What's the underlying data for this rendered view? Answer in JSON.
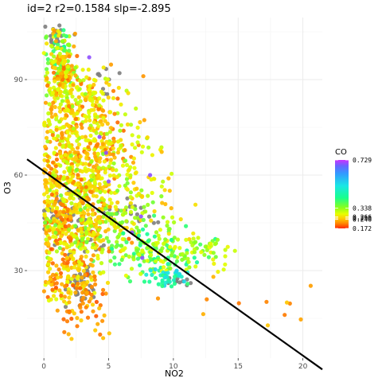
{
  "chart_data": {
    "type": "scatter",
    "title": "id=2 r2=0.1584 slp=-2.895",
    "xlabel": "NO2",
    "ylabel": "O3",
    "xlim": [
      -1.3,
      21.5
    ],
    "ylim": [
      2.5,
      109.5
    ],
    "x_ticks": [
      0,
      5,
      10,
      15,
      20
    ],
    "y_ticks": [
      30,
      60,
      90
    ],
    "x_minor": [
      2.5,
      7.5,
      12.5,
      17.5
    ],
    "y_minor": [
      15,
      45,
      75,
      105
    ],
    "grid": true,
    "legend_position": "right",
    "color_legend": {
      "title": "CO",
      "min": 0.172,
      "max": 0.729,
      "labels": [
        {
          "text": "0.729",
          "value": 0.729
        },
        {
          "text": "0.338",
          "value": 0.338
        },
        {
          "text": "0.266",
          "value": 0.266
        },
        {
          "text": "0.256",
          "value": 0.256
        },
        {
          "text": "0.246",
          "value": 0.246
        },
        {
          "text": "0.172",
          "value": 0.172
        }
      ],
      "gradient_stops": [
        {
          "value": 0.172,
          "color": "#ff2a00"
        },
        {
          "value": 0.215,
          "color": "#ff8c00"
        },
        {
          "value": 0.255,
          "color": "#ffd000"
        },
        {
          "value": 0.29,
          "color": "#e6ff00"
        },
        {
          "value": 0.34,
          "color": "#8cff1a"
        },
        {
          "value": 0.42,
          "color": "#1aff8c"
        },
        {
          "value": 0.52,
          "color": "#1ae6e6"
        },
        {
          "value": 0.62,
          "color": "#3399ff"
        },
        {
          "value": 0.68,
          "color": "#6666ff"
        },
        {
          "value": 0.729,
          "color": "#cc33ff"
        }
      ],
      "na_color": "#808080"
    },
    "regression_line": {
      "slope": -2.895,
      "intercept": 61.2,
      "x_start": -1.3,
      "x_end": 21.5,
      "color": "#000000"
    },
    "clusters": [
      {
        "cx": 1.2,
        "cy": 97,
        "sx": 0.6,
        "sy": 6,
        "n": 120,
        "co": [
          0.22,
          0.42
        ]
      },
      {
        "cx": 1.8,
        "cy": 90,
        "sx": 1.0,
        "sy": 5,
        "n": 110,
        "co": [
          0.2,
          0.34
        ]
      },
      {
        "cx": 2.8,
        "cy": 80,
        "sx": 1.8,
        "sy": 6,
        "n": 160,
        "co": [
          0.2,
          0.32
        ]
      },
      {
        "cx": 3.8,
        "cy": 70,
        "sx": 2.2,
        "sy": 4,
        "n": 170,
        "co": [
          0.2,
          0.33
        ]
      },
      {
        "cx": 2.0,
        "cy": 60,
        "sx": 2.0,
        "sy": 5,
        "n": 200,
        "co": [
          0.2,
          0.3
        ]
      },
      {
        "cx": 4.5,
        "cy": 56,
        "sx": 2.5,
        "sy": 5,
        "n": 150,
        "co": [
          0.24,
          0.36
        ]
      },
      {
        "cx": 2.2,
        "cy": 45,
        "sx": 1.8,
        "sy": 6,
        "n": 260,
        "co": [
          0.19,
          0.3
        ]
      },
      {
        "cx": 5.5,
        "cy": 43,
        "sx": 2.5,
        "sy": 4,
        "n": 150,
        "co": [
          0.25,
          0.38
        ]
      },
      {
        "cx": 8.5,
        "cy": 36,
        "sx": 2.0,
        "sy": 4,
        "n": 130,
        "co": [
          0.28,
          0.44
        ]
      },
      {
        "cx": 11.5,
        "cy": 36,
        "sx": 2.0,
        "sy": 3,
        "n": 60,
        "co": [
          0.28,
          0.36
        ]
      },
      {
        "cx": 2.2,
        "cy": 28,
        "sx": 1.4,
        "sy": 5,
        "n": 140,
        "co": [
          0.19,
          0.3
        ]
      },
      {
        "cx": 3.0,
        "cy": 18,
        "sx": 1.0,
        "sy": 5,
        "n": 50,
        "co": [
          0.19,
          0.26
        ]
      },
      {
        "cx": 4.0,
        "cy": 86,
        "sx": 0.6,
        "sy": 3,
        "n": 20,
        "co": [
          0.24,
          0.3
        ]
      },
      {
        "cx": 9.5,
        "cy": 28,
        "sx": 0.8,
        "sy": 1.5,
        "n": 40,
        "co": [
          0.4,
          0.55
        ]
      },
      {
        "cx": 16.0,
        "cy": 22,
        "sx": 3.5,
        "sy": 6,
        "n": 12,
        "co": [
          0.2,
          0.25
        ]
      }
    ],
    "gray_clusters": [
      {
        "cx": 1.0,
        "cy": 103,
        "sx": 0.5,
        "sy": 2,
        "n": 20
      },
      {
        "cx": 3.0,
        "cy": 25,
        "sx": 0.6,
        "sy": 4,
        "n": 50
      },
      {
        "cx": 1.5,
        "cy": 48,
        "sx": 1.2,
        "sy": 3,
        "n": 40
      },
      {
        "cx": 10.5,
        "cy": 26.5,
        "sx": 0.5,
        "sy": 0.6,
        "n": 12
      },
      {
        "cx": 7.0,
        "cy": 48,
        "sx": 1.2,
        "sy": 2,
        "n": 20
      },
      {
        "cx": 2.5,
        "cy": 40,
        "sx": 1.0,
        "sy": 3,
        "n": 30
      },
      {
        "cx": 4.8,
        "cy": 92,
        "sx": 0.6,
        "sy": 4,
        "n": 10
      }
    ],
    "purple_points": [
      [
        7.5,
        47
      ],
      [
        8.2,
        60
      ],
      [
        6.8,
        42
      ],
      [
        5.0,
        58
      ],
      [
        7.6,
        34
      ],
      [
        4.8,
        67
      ],
      [
        4.3,
        72
      ],
      [
        3.5,
        97
      ]
    ]
  }
}
